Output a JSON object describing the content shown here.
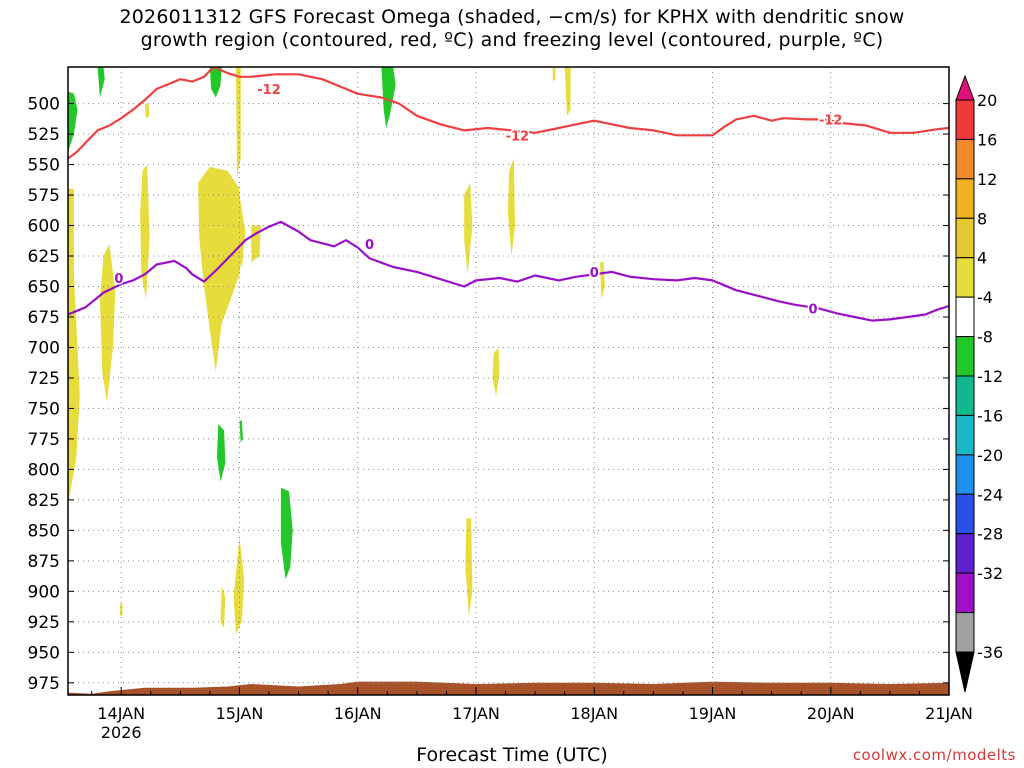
{
  "title_line1": "2026011312 GFS Forecast Omega (shaded, −cm/s) for KPHX with dendritic snow",
  "title_line2": "growth region (contoured, red, ºC) and freezing level (contoured, purple, ºC)",
  "xlabel": "Forecast Time (UTC)",
  "credit": "coolwx.com/modelts",
  "chart_data": {
    "type": "heatmap",
    "title": "2026011312 GFS Forecast Omega (shaded, −cm/s) for KPHX with dendritic snow growth region (contoured, red, ºC) and freezing level (contoured, purple, ºC)",
    "xlabel": "Forecast Time (UTC)",
    "ylabel": "",
    "x_ticks": [
      "14JAN",
      "15JAN",
      "16JAN",
      "17JAN",
      "18JAN",
      "19JAN",
      "20JAN",
      "21JAN"
    ],
    "x_tick_sublabel": {
      "tick": "14JAN",
      "text": "2026"
    },
    "xlim_days": [
      13.55,
      21.0
    ],
    "y_ticks": [
      500,
      525,
      550,
      575,
      600,
      625,
      650,
      675,
      700,
      725,
      750,
      775,
      800,
      825,
      850,
      875,
      900,
      925,
      950,
      975
    ],
    "ylim": [
      470,
      985
    ],
    "y_axis_reversed": true,
    "grid": true,
    "colorbar": {
      "labels": [
        20,
        16,
        12,
        8,
        4,
        -4,
        -8,
        -12,
        -16,
        -20,
        -24,
        -28,
        -32,
        -36
      ],
      "bins": [
        {
          "color": "#ee3a3a"
        },
        {
          "color": "#f08a2a"
        },
        {
          "color": "#f0b020"
        },
        {
          "color": "#e6c830"
        },
        {
          "color": "#e6dc3c"
        },
        {
          "color": "#ffffff"
        },
        {
          "color": "#22c828"
        },
        {
          "color": "#10b890"
        },
        {
          "color": "#18b8c8"
        },
        {
          "color": "#1e90f0"
        },
        {
          "color": "#2850e6"
        },
        {
          "color": "#6020d0"
        },
        {
          "color": "#a010c8"
        },
        {
          "color": "#a0a0a0"
        }
      ],
      "top_arrow_color": "#e0107a",
      "bottom_arrow_color": "#000000"
    },
    "series": [
      {
        "name": "-12",
        "color": "#ee4040",
        "points": [
          [
            13.55,
            545
          ],
          [
            13.62,
            540
          ],
          [
            13.72,
            530
          ],
          [
            13.8,
            522
          ],
          [
            13.9,
            518
          ],
          [
            14.0,
            512
          ],
          [
            14.1,
            505
          ],
          [
            14.2,
            497
          ],
          [
            14.3,
            488
          ],
          [
            14.4,
            484
          ],
          [
            14.5,
            480
          ],
          [
            14.6,
            482
          ],
          [
            14.7,
            478
          ],
          [
            14.78,
            470
          ],
          [
            14.9,
            475
          ],
          [
            15.0,
            478
          ],
          [
            15.1,
            478
          ],
          [
            15.3,
            476
          ],
          [
            15.5,
            476
          ],
          [
            15.7,
            480
          ],
          [
            15.9,
            488
          ],
          [
            16.0,
            492
          ],
          [
            16.2,
            495
          ],
          [
            16.35,
            500
          ],
          [
            16.5,
            510
          ],
          [
            16.7,
            517
          ],
          [
            16.9,
            522
          ],
          [
            17.1,
            520
          ],
          [
            17.3,
            522
          ],
          [
            17.5,
            524
          ],
          [
            17.7,
            520
          ],
          [
            17.9,
            516
          ],
          [
            18.0,
            514
          ],
          [
            18.15,
            517
          ],
          [
            18.3,
            520
          ],
          [
            18.5,
            522
          ],
          [
            18.7,
            526
          ],
          [
            19.0,
            526
          ],
          [
            19.1,
            519
          ],
          [
            19.2,
            513
          ],
          [
            19.35,
            510
          ],
          [
            19.5,
            514
          ],
          [
            19.6,
            512
          ],
          [
            19.8,
            513
          ],
          [
            19.95,
            513
          ],
          [
            20.1,
            516
          ],
          [
            20.3,
            518
          ],
          [
            20.5,
            524
          ],
          [
            20.7,
            524
          ],
          [
            20.9,
            521
          ],
          [
            21.0,
            520
          ]
        ]
      },
      {
        "name": "0",
        "color": "#9a10c8",
        "points": [
          [
            13.55,
            673
          ],
          [
            13.7,
            667
          ],
          [
            13.85,
            655
          ],
          [
            14.0,
            648
          ],
          [
            14.1,
            645
          ],
          [
            14.2,
            640
          ],
          [
            14.3,
            632
          ],
          [
            14.45,
            629
          ],
          [
            14.55,
            635
          ],
          [
            14.6,
            640
          ],
          [
            14.7,
            646
          ],
          [
            14.8,
            637
          ],
          [
            14.95,
            622
          ],
          [
            15.05,
            612
          ],
          [
            15.15,
            606
          ],
          [
            15.25,
            601
          ],
          [
            15.35,
            597
          ],
          [
            15.5,
            605
          ],
          [
            15.6,
            612
          ],
          [
            15.8,
            617
          ],
          [
            15.9,
            612
          ],
          [
            16.0,
            618
          ],
          [
            16.1,
            627
          ],
          [
            16.3,
            634
          ],
          [
            16.5,
            638
          ],
          [
            16.7,
            644
          ],
          [
            16.9,
            650
          ],
          [
            17.0,
            645
          ],
          [
            17.2,
            643
          ],
          [
            17.35,
            646
          ],
          [
            17.5,
            641
          ],
          [
            17.7,
            645
          ],
          [
            17.85,
            642
          ],
          [
            18.0,
            640
          ],
          [
            18.15,
            638
          ],
          [
            18.3,
            642
          ],
          [
            18.5,
            644
          ],
          [
            18.7,
            645
          ],
          [
            18.85,
            643
          ],
          [
            19.0,
            645
          ],
          [
            19.2,
            653
          ],
          [
            19.4,
            658
          ],
          [
            19.55,
            662
          ],
          [
            19.7,
            665
          ],
          [
            19.9,
            668
          ],
          [
            20.05,
            672
          ],
          [
            20.2,
            675
          ],
          [
            20.35,
            678
          ],
          [
            20.5,
            677
          ],
          [
            20.65,
            675
          ],
          [
            20.8,
            673
          ],
          [
            20.9,
            669
          ],
          [
            21.0,
            666
          ]
        ]
      }
    ],
    "contour_labels": [
      {
        "series": "-12",
        "text": "-12",
        "x": 15.25,
        "y": 488
      },
      {
        "series": "-12",
        "text": "-12",
        "x": 17.35,
        "y": 526
      },
      {
        "series": "-12",
        "text": "-12",
        "x": 20.0,
        "y": 513
      },
      {
        "series": "0",
        "text": "0",
        "x": 13.98,
        "y": 643
      },
      {
        "series": "0",
        "text": "0",
        "x": 16.1,
        "y": 615
      },
      {
        "series": "0",
        "text": "0",
        "x": 18.0,
        "y": 638
      },
      {
        "series": "0",
        "text": "0",
        "x": 19.85,
        "y": 668
      }
    ],
    "omega_regions": [
      {
        "color": "#22c828",
        "points": [
          [
            13.55,
            490
          ],
          [
            13.6,
            492
          ],
          [
            13.63,
            505
          ],
          [
            13.6,
            525
          ],
          [
            13.55,
            540
          ]
        ]
      },
      {
        "color": "#22c828",
        "points": [
          [
            13.8,
            470
          ],
          [
            13.85,
            470
          ],
          [
            13.86,
            480
          ],
          [
            13.82,
            495
          ]
        ]
      },
      {
        "color": "#22c828",
        "points": [
          [
            14.75,
            470
          ],
          [
            14.85,
            470
          ],
          [
            14.84,
            485
          ],
          [
            14.8,
            495
          ],
          [
            14.76,
            488
          ]
        ]
      },
      {
        "color": "#22c828",
        "points": [
          [
            16.2,
            470
          ],
          [
            16.3,
            470
          ],
          [
            16.32,
            485
          ],
          [
            16.27,
            510
          ],
          [
            16.24,
            520
          ],
          [
            16.22,
            505
          ]
        ]
      },
      {
        "color": "#22c828",
        "points": [
          [
            14.82,
            763
          ],
          [
            14.87,
            768
          ],
          [
            14.88,
            795
          ],
          [
            14.84,
            810
          ],
          [
            14.81,
            790
          ]
        ]
      },
      {
        "color": "#22c828",
        "points": [
          [
            15.0,
            760
          ],
          [
            15.02,
            760
          ],
          [
            15.03,
            775
          ],
          [
            15.01,
            778
          ]
        ]
      },
      {
        "color": "#22c828",
        "points": [
          [
            15.35,
            815
          ],
          [
            15.42,
            818
          ],
          [
            15.45,
            850
          ],
          [
            15.43,
            880
          ],
          [
            15.39,
            890
          ],
          [
            15.35,
            860
          ]
        ]
      },
      {
        "color": "#e6dc3c",
        "points": [
          [
            13.55,
            570
          ],
          [
            13.6,
            570
          ],
          [
            13.6,
            640
          ],
          [
            13.65,
            740
          ],
          [
            13.62,
            790
          ],
          [
            13.55,
            830
          ]
        ]
      },
      {
        "color": "#e6dc3c",
        "points": [
          [
            13.85,
            625
          ],
          [
            13.9,
            615
          ],
          [
            13.95,
            655
          ],
          [
            13.93,
            700
          ],
          [
            13.88,
            745
          ],
          [
            13.84,
            720
          ],
          [
            13.82,
            660
          ]
        ]
      },
      {
        "color": "#e6dc3c",
        "points": [
          [
            14.18,
            555
          ],
          [
            14.22,
            550
          ],
          [
            14.24,
            610
          ],
          [
            14.21,
            660
          ],
          [
            14.17,
            640
          ],
          [
            14.16,
            590
          ]
        ]
      },
      {
        "color": "#e6dc3c",
        "points": [
          [
            14.65,
            565
          ],
          [
            14.75,
            552
          ],
          [
            14.9,
            555
          ],
          [
            15.0,
            570
          ],
          [
            15.02,
            620
          ],
          [
            15.0,
            640
          ],
          [
            14.92,
            662
          ],
          [
            14.85,
            680
          ],
          [
            14.8,
            720
          ],
          [
            14.77,
            700
          ],
          [
            14.7,
            650
          ],
          [
            14.66,
            610
          ]
        ]
      },
      {
        "color": "#e6dc3c",
        "points": [
          [
            14.9,
            590
          ],
          [
            15.0,
            575
          ],
          [
            15.05,
            605
          ],
          [
            15.02,
            635
          ]
        ]
      },
      {
        "color": "#e6dc3c",
        "points": [
          [
            14.97,
            470
          ],
          [
            15.01,
            470
          ],
          [
            15.01,
            545
          ],
          [
            14.98,
            560
          ]
        ]
      },
      {
        "color": "#e6dc3c",
        "points": [
          [
            14.2,
            500
          ],
          [
            14.23,
            500
          ],
          [
            14.24,
            510
          ],
          [
            14.21,
            512
          ]
        ]
      },
      {
        "color": "#e6dc3c",
        "points": [
          [
            14.95,
            905
          ],
          [
            15.0,
            855
          ],
          [
            15.04,
            890
          ],
          [
            15.02,
            925
          ],
          [
            14.97,
            935
          ]
        ]
      },
      {
        "color": "#e6dc3c",
        "points": [
          [
            14.85,
            895
          ],
          [
            14.88,
            905
          ],
          [
            14.87,
            930
          ],
          [
            14.84,
            925
          ]
        ]
      },
      {
        "color": "#e6dc3c",
        "points": [
          [
            16.9,
            575
          ],
          [
            16.95,
            565
          ],
          [
            16.97,
            600
          ],
          [
            16.93,
            640
          ],
          [
            16.9,
            612
          ]
        ]
      },
      {
        "color": "#e6dc3c",
        "points": [
          [
            17.28,
            555
          ],
          [
            17.32,
            545
          ],
          [
            17.33,
            600
          ],
          [
            17.3,
            625
          ],
          [
            17.27,
            590
          ]
        ]
      },
      {
        "color": "#e6dc3c",
        "points": [
          [
            17.15,
            705
          ],
          [
            17.19,
            700
          ],
          [
            17.2,
            720
          ],
          [
            17.17,
            740
          ],
          [
            17.14,
            725
          ]
        ]
      },
      {
        "color": "#e6dc3c",
        "points": [
          [
            16.92,
            840
          ],
          [
            16.96,
            840
          ],
          [
            16.97,
            900
          ],
          [
            16.94,
            920
          ],
          [
            16.91,
            880
          ]
        ]
      },
      {
        "color": "#e6dc3c",
        "points": [
          [
            18.05,
            630
          ],
          [
            18.08,
            630
          ],
          [
            18.09,
            650
          ],
          [
            18.06,
            660
          ]
        ]
      },
      {
        "color": "#e6dc3c",
        "points": [
          [
            17.65,
            470
          ],
          [
            17.67,
            470
          ],
          [
            17.67,
            480
          ],
          [
            17.65,
            482
          ]
        ]
      },
      {
        "color": "#e6dc3c",
        "points": [
          [
            17.75,
            470
          ],
          [
            17.8,
            470
          ],
          [
            17.8,
            505
          ],
          [
            17.77,
            510
          ]
        ]
      },
      {
        "color": "#e6dc3c",
        "points": [
          [
            15.1,
            600
          ],
          [
            15.18,
            600
          ],
          [
            15.17,
            625
          ],
          [
            15.1,
            630
          ]
        ]
      },
      {
        "color": "#e6dc3c",
        "points": [
          [
            13.99,
            910
          ],
          [
            14.01,
            910
          ],
          [
            14.01,
            920
          ],
          [
            13.99,
            920
          ]
        ]
      }
    ],
    "terrain": {
      "color": "#a8522c",
      "points": [
        [
          13.55,
          983
        ],
        [
          13.75,
          984
        ],
        [
          13.9,
          982
        ],
        [
          14.2,
          979
        ],
        [
          14.6,
          979
        ],
        [
          14.9,
          978
        ],
        [
          15.1,
          976
        ],
        [
          15.5,
          978
        ],
        [
          15.85,
          976
        ],
        [
          16.0,
          974
        ],
        [
          16.5,
          974
        ],
        [
          17.0,
          976
        ],
        [
          17.5,
          975
        ],
        [
          18.0,
          975
        ],
        [
          18.5,
          976
        ],
        [
          19.0,
          974
        ],
        [
          19.5,
          975
        ],
        [
          20.0,
          975
        ],
        [
          20.5,
          976
        ],
        [
          21.0,
          975
        ]
      ]
    }
  }
}
